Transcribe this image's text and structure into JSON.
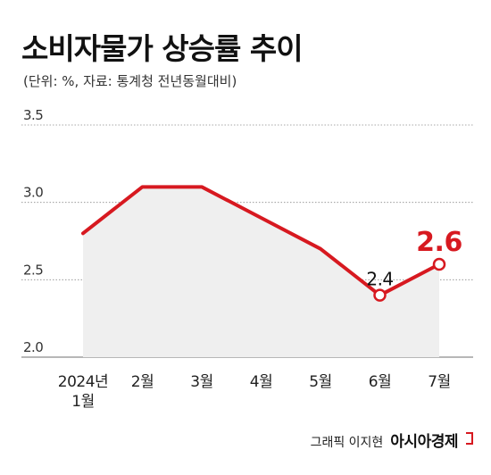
{
  "header": {
    "title": "소비자물가 상승률 추이",
    "subtitle": "(단위: %, 자료: 통계청 전년동월대비)"
  },
  "credit": {
    "byline": "그래픽 이지현",
    "brand": "아시아경제"
  },
  "colors": {
    "line": "#d71920",
    "area": "#efefef",
    "grid": "#8c8c8c",
    "label_dark": "#111111",
    "label_accent": "#d71920"
  },
  "chart_data": {
    "type": "area",
    "title": "소비자물가 상승률 추이",
    "subtitle": "(단위: %, 자료: 통계청 전년동월대비)",
    "categories": [
      [
        "2024년",
        "1월"
      ],
      [
        "2월"
      ],
      [
        "3월"
      ],
      [
        "4월"
      ],
      [
        "5월"
      ],
      [
        "6월"
      ],
      [
        "7월"
      ]
    ],
    "values": [
      2.8,
      3.1,
      3.1,
      2.9,
      2.7,
      2.4,
      2.6
    ],
    "ylim": [
      2.0,
      3.5
    ],
    "yticks": [
      "2.0",
      "2.5",
      "3.0",
      "3.5"
    ],
    "grid": true,
    "markers": [
      {
        "index": 5,
        "label": "2.4"
      },
      {
        "index": 6,
        "label": "2.6"
      }
    ]
  }
}
